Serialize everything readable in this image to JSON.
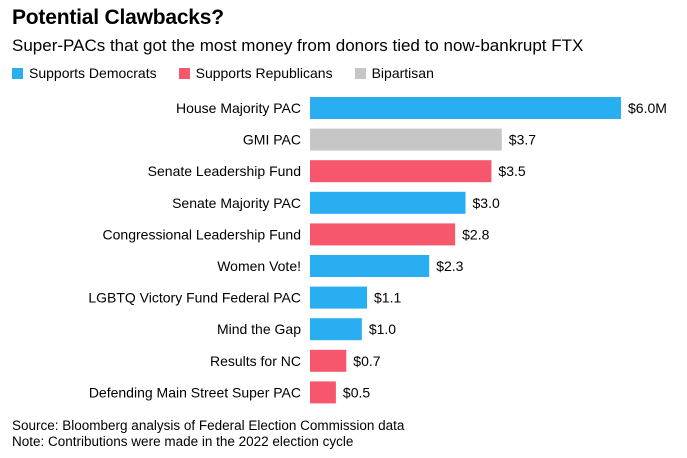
{
  "title": "Potential Clawbacks?",
  "subtitle": "Super-PACs that got the most money from donors tied to now-bankrupt FTX",
  "legend": [
    {
      "label": "Supports Democrats",
      "color": "#2aaef2"
    },
    {
      "label": "Supports Republicans",
      "color": "#f7576d"
    },
    {
      "label": "Bipartisan",
      "color": "#c6c6c6"
    }
  ],
  "chart_data": {
    "type": "bar",
    "orientation": "horizontal",
    "title": "Potential Clawbacks?",
    "subtitle": "Super-PACs that got the most money from donors tied to now-bankrupt FTX",
    "unit": "$ millions",
    "xlim": [
      0,
      6.0
    ],
    "categories": [
      "House Majority PAC",
      "GMI PAC",
      "Senate Leadership Fund",
      "Senate Majority PAC",
      "Congressional Leadership Fund",
      "Women Vote!",
      "LGBTQ Victory Fund Federal PAC",
      "Mind the Gap",
      "Results for NC",
      "Defending Main Street Super PAC"
    ],
    "values": [
      6.0,
      3.7,
      3.5,
      3.0,
      2.8,
      2.3,
      1.1,
      1.0,
      0.7,
      0.5
    ],
    "value_labels": [
      "$6.0M",
      "$3.7",
      "$3.5",
      "$3.0",
      "$2.8",
      "$2.3",
      "$1.1",
      "$1.0",
      "$0.7",
      "$0.5"
    ],
    "groups": [
      "Supports Democrats",
      "Bipartisan",
      "Supports Republicans",
      "Supports Democrats",
      "Supports Republicans",
      "Supports Democrats",
      "Supports Democrats",
      "Supports Democrats",
      "Supports Republicans",
      "Supports Republicans"
    ]
  },
  "footer": {
    "source": "Source: Bloomberg analysis of Federal Election Commission data",
    "note": "Note: Contributions were made in the 2022 election cycle"
  }
}
